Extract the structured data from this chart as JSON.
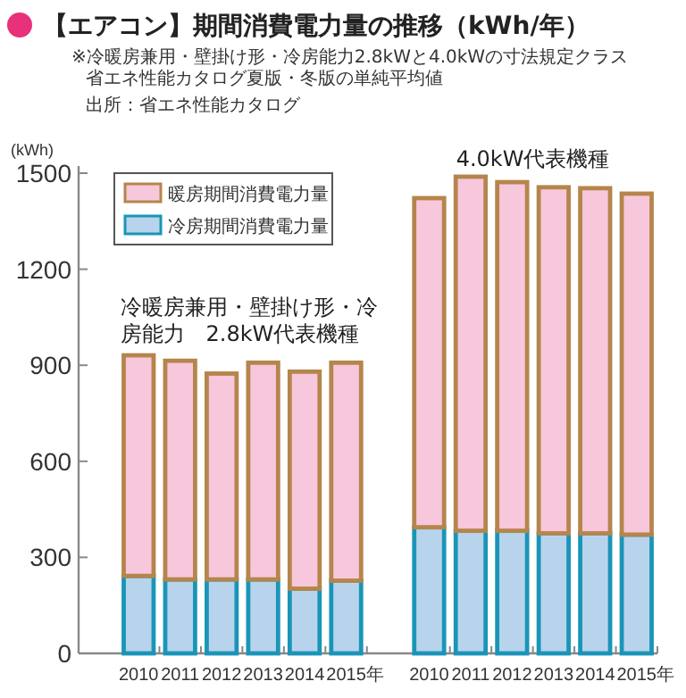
{
  "chart_data": {
    "type": "bar",
    "stacked": true,
    "title": "【エアコン】期間消費電力量の推移（kWh/年）",
    "subtitle": "※冷暖房兼用・壁掛け形・冷房能力2.8kWと4.0kWの寸法規定クラス",
    "annotations": [
      "省エネ性能カタログ夏版・冬版の単純平均値",
      "出所：省エネ性能カタログ",
      "冷暖房兼用・壁掛け形・冷房能力　2.8kW代表機種",
      "4.0kW代表機種"
    ],
    "ylabel": "(kWh)",
    "categories": [
      "2010",
      "2011",
      "2012",
      "2013",
      "2014",
      "2015年",
      null,
      "2010",
      "2011",
      "2012",
      "2013",
      "2014",
      "2015年"
    ],
    "series": [
      {
        "name": "冷房期間消費電力量",
        "color": "#b8d4ec",
        "values": [
          242,
          231,
          231,
          231,
          202,
          227,
          null,
          394,
          383,
          383,
          375,
          375,
          371
        ]
      },
      {
        "name": "暖房期間消費電力量",
        "color": "#f7c7dc",
        "values": [
          689,
          683,
          643,
          677,
          678,
          681,
          null,
          1028,
          1106,
          1089,
          1081,
          1078,
          1065
        ]
      }
    ],
    "ylim": [
      0,
      1500
    ],
    "yticks": [
      0,
      300,
      600,
      900,
      1200,
      1500
    ],
    "legend": "top left",
    "grid": false
  }
}
